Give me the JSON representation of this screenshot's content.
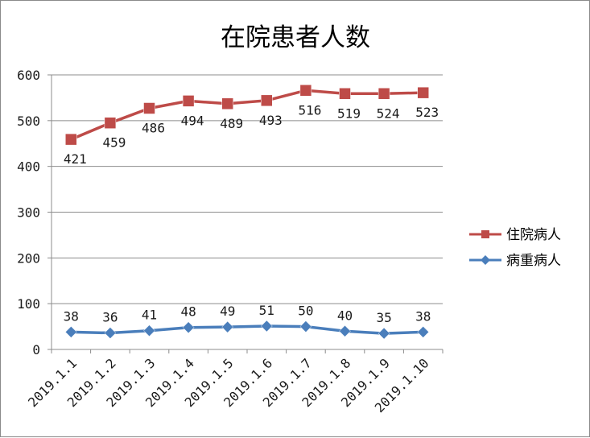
{
  "chart_data": {
    "type": "line",
    "title": "在院患者人数",
    "categories": [
      "2019.1.1",
      "2019.1.2",
      "2019.1.3",
      "2019.1.4",
      "2019.1.5",
      "2019.1.6",
      "2019.1.7",
      "2019.1.8",
      "2019.1.9",
      "2019.1.10"
    ],
    "ylim": [
      0,
      600
    ],
    "yticks": [
      "0",
      "100",
      "200",
      "300",
      "400",
      "500",
      "600"
    ],
    "grid": true,
    "legend_position": "right",
    "series": [
      {
        "name": "住院病人",
        "color": "#be4b48",
        "marker": "square",
        "values": [
          459,
          495,
          527,
          543,
          537,
          544,
          566,
          559,
          559,
          561
        ],
        "data_labels": [
          "421",
          "459",
          "486",
          "494",
          "489",
          "493",
          "516",
          "519",
          "524",
          "523"
        ]
      },
      {
        "name": "病重病人",
        "color": "#4a7ebb",
        "marker": "diamond",
        "values": [
          38,
          36,
          41,
          48,
          49,
          51,
          50,
          40,
          35,
          38
        ],
        "data_labels": [
          "38",
          "36",
          "41",
          "48",
          "49",
          "51",
          "50",
          "40",
          "35",
          "38"
        ]
      }
    ]
  }
}
